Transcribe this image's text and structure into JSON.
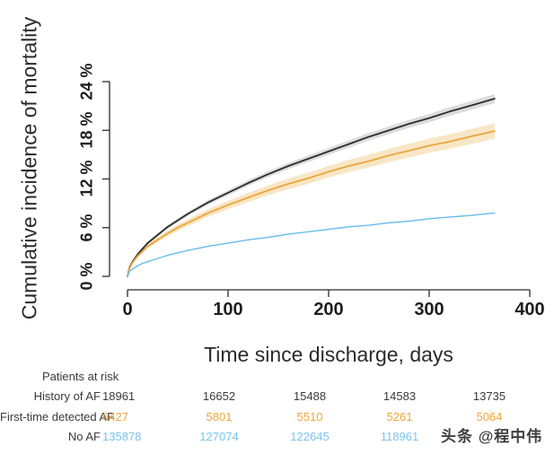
{
  "watermark": "头条 @程中伟",
  "chart_data": {
    "type": "line",
    "title": "",
    "xlabel": "Time since discharge, days",
    "ylabel": "Cumulative incidence of mortality",
    "xlim": [
      0,
      400
    ],
    "ylim": [
      0,
      24
    ],
    "grid": false,
    "legend_position": "none",
    "xticks": [
      0,
      100,
      200,
      300,
      400
    ],
    "ytick_values": [
      0,
      6,
      12,
      18,
      24
    ],
    "ytick_labels": [
      "0 %",
      "6 %",
      "12 %",
      "18 %",
      "24 %"
    ],
    "x_days": [
      0,
      2,
      5,
      10,
      15,
      20,
      30,
      40,
      50,
      60,
      80,
      100,
      120,
      140,
      160,
      180,
      200,
      220,
      240,
      260,
      280,
      300,
      320,
      340,
      365
    ],
    "series": [
      {
        "name": "History of AF",
        "color": "#2d2d2d",
        "line_width": 1.8,
        "band_color": "#c4c4c4",
        "band_opacity": 0.6,
        "band_halfwidth_base": 0.1,
        "band_halfwidth_scale": 0.021,
        "y_pct": [
          0,
          1.1,
          1.8,
          2.7,
          3.4,
          4.1,
          5.1,
          6.1,
          6.9,
          7.7,
          9.1,
          10.3,
          11.5,
          12.6,
          13.6,
          14.5,
          15.4,
          16.3,
          17.2,
          18.0,
          18.8,
          19.5,
          20.3,
          21.0,
          21.9
        ]
      },
      {
        "name": "First-time detected AF",
        "color": "#e9a63b",
        "line_width": 1.8,
        "band_color": "#f2ce8c",
        "band_opacity": 0.5,
        "band_halfwidth_base": 0.1,
        "band_halfwidth_scale": 0.048,
        "y_pct": [
          0,
          1.0,
          1.7,
          2.5,
          3.1,
          3.7,
          4.5,
          5.3,
          6.0,
          6.6,
          7.8,
          8.8,
          9.7,
          10.6,
          11.4,
          12.1,
          12.9,
          13.6,
          14.2,
          14.9,
          15.5,
          16.1,
          16.6,
          17.2,
          17.9
        ]
      },
      {
        "name": "No AF",
        "color": "#66bcea",
        "line_width": 1.4,
        "band_color": "",
        "band_opacity": 0,
        "band_halfwidth_base": 0,
        "band_halfwidth_scale": 0,
        "y_pct": [
          0,
          0.6,
          0.9,
          1.3,
          1.6,
          1.8,
          2.2,
          2.6,
          2.9,
          3.2,
          3.7,
          4.1,
          4.5,
          4.8,
          5.2,
          5.5,
          5.8,
          6.1,
          6.3,
          6.6,
          6.8,
          7.1,
          7.3,
          7.5,
          7.8
        ]
      }
    ]
  },
  "risk_table": {
    "title": "Patients at risk",
    "rows": [
      {
        "label": "History of AF",
        "value_color": "#3a3a3a",
        "values": [
          "18961",
          "16652",
          "15488",
          "14583",
          "13735"
        ]
      },
      {
        "label": "First-time detected AF",
        "value_color": "#f0a63c",
        "values": [
          "6427",
          "5801",
          "5510",
          "5261",
          "5064"
        ]
      },
      {
        "label": "No AF",
        "value_color": "#79c4f0",
        "values": [
          "135878",
          "127074",
          "122645",
          "118961",
          ""
        ]
      }
    ]
  }
}
